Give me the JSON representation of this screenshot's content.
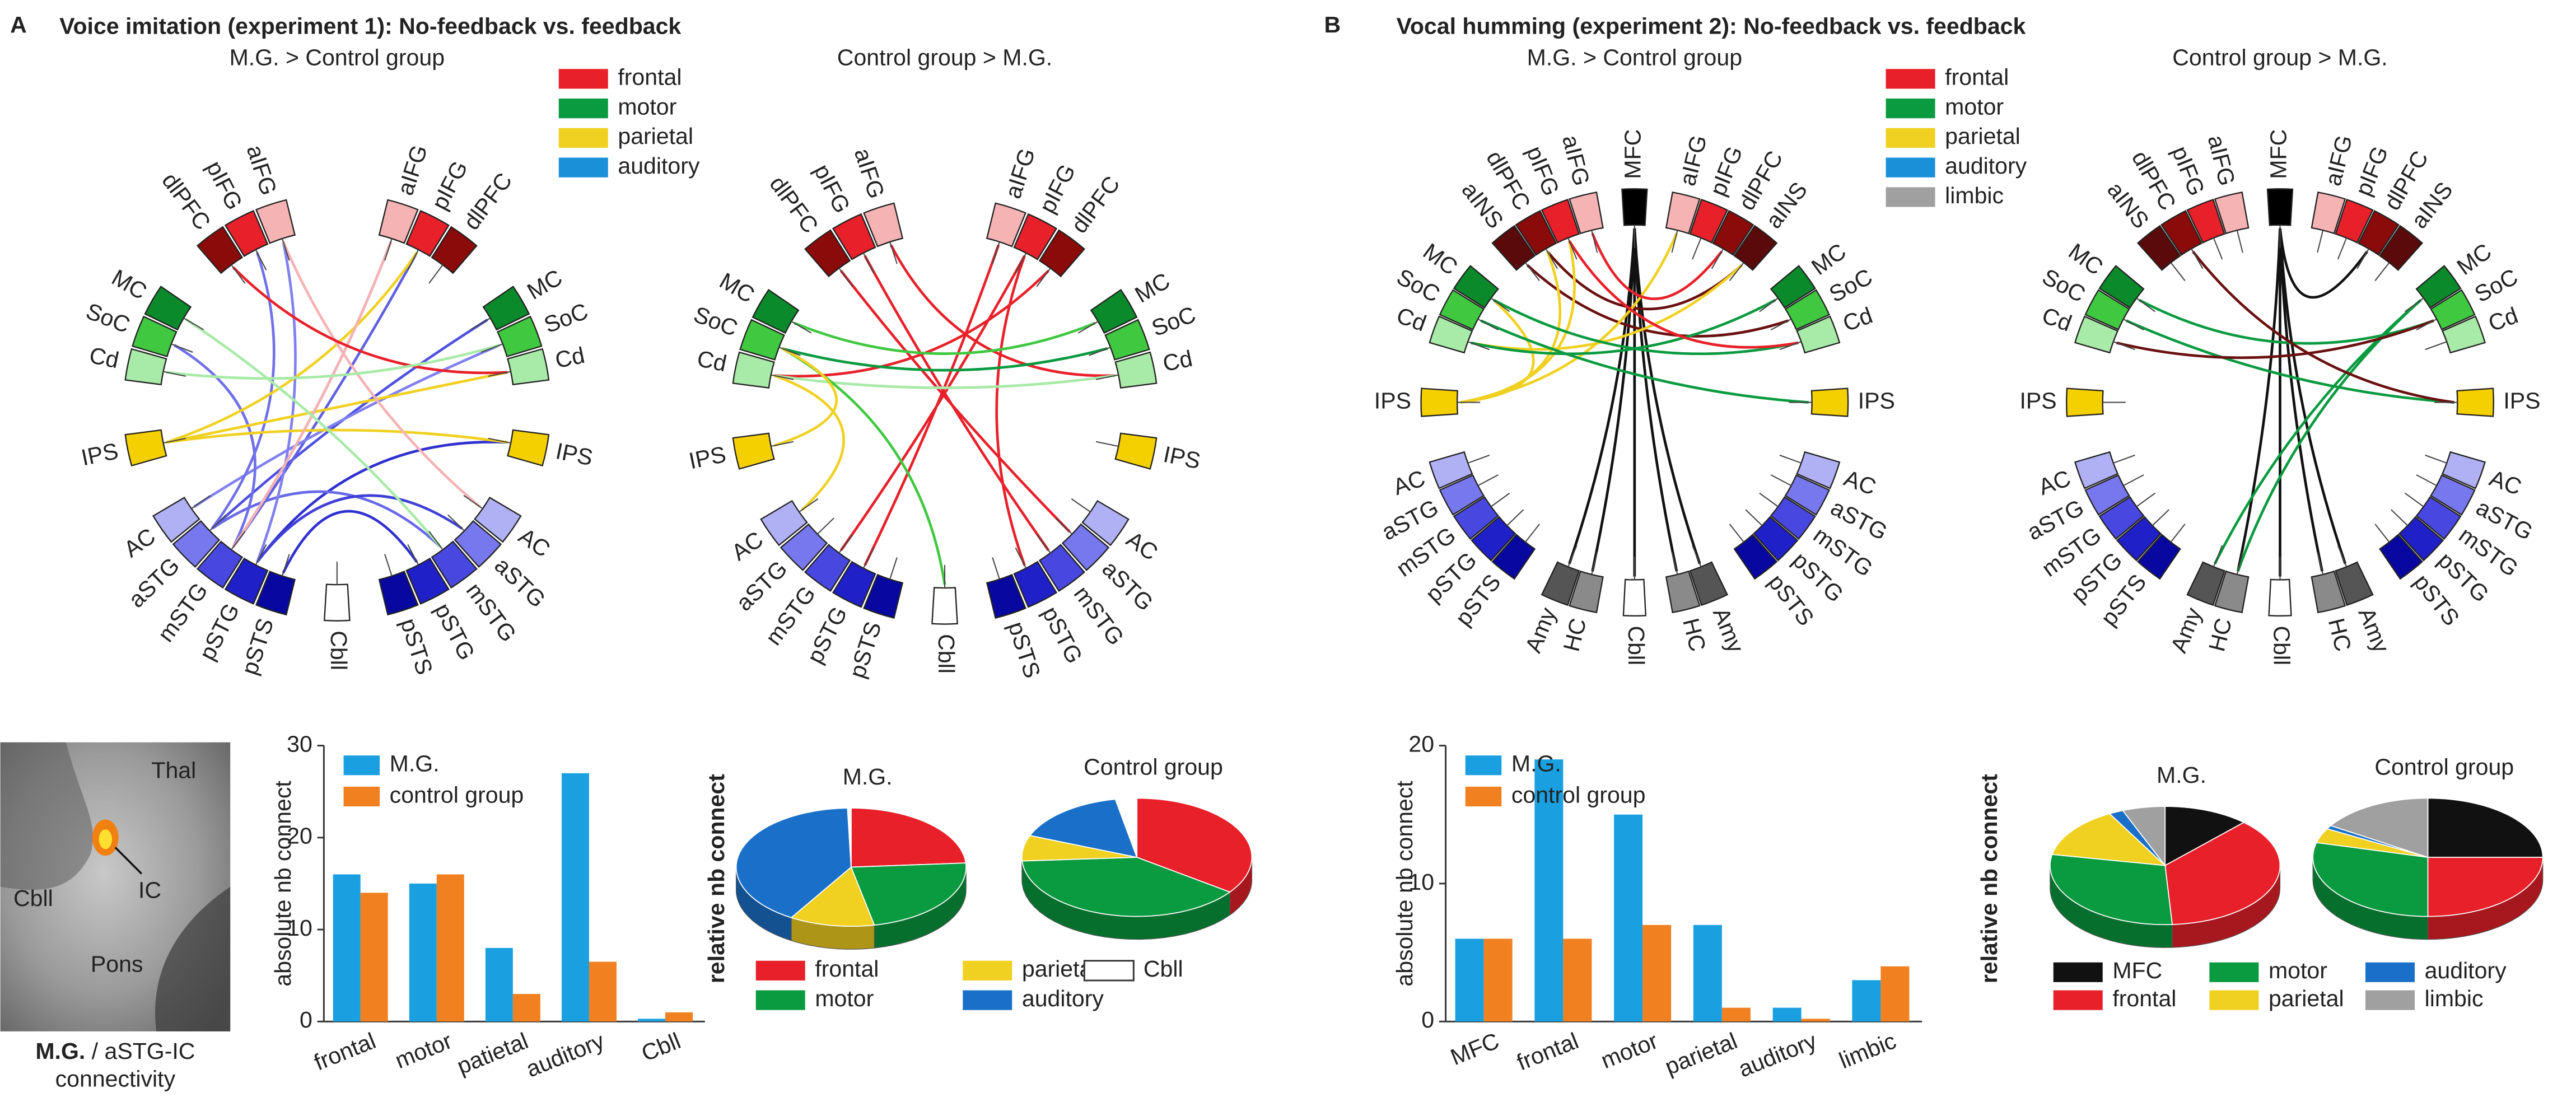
{
  "panel_a": {
    "letter": "A",
    "title": "Voice imitation (experiment 1):  No-feedback vs. feedback",
    "legend": [
      {
        "label": "frontal",
        "color": "#e8202a"
      },
      {
        "label": "motor",
        "color": "#0a9a40"
      },
      {
        "label": "parietal",
        "color": "#f0d020"
      },
      {
        "label": "auditory",
        "color": "#1a90d8"
      }
    ],
    "node_colors": [
      "#f5b3b3",
      "#e8202a",
      "#8b0a0a",
      "#0a8a2a",
      "#40c840",
      "#a8eaa8",
      "#f5d000",
      "#b0b0f5",
      "#7878ee",
      "#4848e0",
      "#2020c8",
      "#0808a0"
    ],
    "connectograms": [
      {
        "subtitle": "M.G. > Control group",
        "right_nodes": [
          "aIFG",
          "pIFG",
          "dlPFC",
          "MC",
          "SoC",
          "Cd",
          "IPS",
          "AC",
          "aSTG",
          "mSTG",
          "pSTG",
          "pSTS"
        ],
        "left_nodes": [
          "aIFG",
          "pIFG",
          "dlPFC",
          "MC",
          "SoC",
          "Cd",
          "IPS",
          "AC",
          "aSTG",
          "mSTG",
          "pSTG",
          "pSTS"
        ],
        "bottom_node": "Cbll"
      },
      {
        "subtitle": "Control group > M.G.",
        "right_nodes": [
          "aIFG",
          "pIFG",
          "dlPFC",
          "MC",
          "SoC",
          "Cd",
          "IPS",
          "AC",
          "aSTG",
          "mSTG",
          "pSTG",
          "pSTS"
        ],
        "left_nodes": [
          "aIFG",
          "pIFG",
          "dlPFC",
          "MC",
          "SoC",
          "Cd",
          "IPS",
          "AC",
          "aSTG",
          "mSTG",
          "pSTG",
          "pSTS"
        ],
        "bottom_node": "Cbll"
      }
    ],
    "brain_image": {
      "labels": [
        "Thal",
        "IC",
        "Cbll",
        "Pons"
      ],
      "caption_bold": "M.G.",
      "caption": " / aSTG-IC",
      "caption_line2": "connectivity"
    },
    "bar_chart": {
      "type": "bar",
      "ylabel": "absolute nb connect",
      "categories": [
        "frontal",
        "motor",
        "patietal",
        "auditory",
        "Cbll"
      ],
      "series": [
        {
          "name": "M.G.",
          "color": "#1aa0e0",
          "values": [
            16,
            15,
            8,
            27,
            0.3
          ]
        },
        {
          "name": "control group",
          "color": "#f08020",
          "values": [
            14,
            16,
            3,
            6.5,
            1
          ]
        }
      ],
      "ylim": [
        0,
        30
      ],
      "yticks": [
        0,
        10,
        20,
        30
      ]
    },
    "pie_chart": {
      "type": "pie",
      "ylabel": "relative nb connect",
      "categories": [
        "frontal",
        "motor",
        "parietal",
        "auditory",
        "Cbll"
      ],
      "colors": [
        "#e8202a",
        "#0a9a40",
        "#f0d020",
        "#1a70c8",
        "#ffffff"
      ],
      "series": [
        {
          "name": "M.G.",
          "values": [
            24,
            23,
            12,
            41,
            0.5
          ]
        },
        {
          "name": "Control group",
          "values": [
            35,
            39,
            7,
            16,
            3
          ]
        }
      ]
    }
  },
  "panel_b": {
    "letter": "B",
    "title": "Vocal humming (experiment 2):  No-feedback vs. feedback",
    "legend": [
      {
        "label": "frontal",
        "color": "#e8202a"
      },
      {
        "label": "motor",
        "color": "#0a9a40"
      },
      {
        "label": "parietal",
        "color": "#f0d020"
      },
      {
        "label": "auditory",
        "color": "#1a90d8"
      },
      {
        "label": "limbic",
        "color": "#a0a0a0"
      }
    ],
    "node_colors": [
      "#f5b3b3",
      "#e8202a",
      "#8b0a0a",
      "#5a0a0a",
      "#0a8a2a",
      "#40c840",
      "#a8eaa8",
      "#f5d000",
      "#b0b0f5",
      "#7878ee",
      "#4848e0",
      "#2020c8",
      "#0808a0",
      "#555555",
      "#8a8a8a"
    ],
    "connectograms": [
      {
        "subtitle": "M.G. > Control group",
        "top_node": "MFC",
        "right_nodes": [
          "aIFG",
          "pIFG",
          "dlPFC",
          "aINS",
          "MC",
          "SoC",
          "Cd",
          "IPS",
          "AC",
          "aSTG",
          "mSTG",
          "pSTG",
          "pSTS",
          "Amy",
          "HC"
        ],
        "left_nodes": [
          "aIFG",
          "pIFG",
          "dlPFC",
          "aINS",
          "MC",
          "SoC",
          "Cd",
          "IPS",
          "AC",
          "aSTG",
          "mSTG",
          "pSTG",
          "pSTS",
          "Amy",
          "HC"
        ],
        "bottom_node": "Cbll"
      },
      {
        "subtitle": "Control group > M.G.",
        "top_node": "MFC",
        "right_nodes": [
          "aIFG",
          "pIFG",
          "dlPFC",
          "aINS",
          "MC",
          "SoC",
          "Cd",
          "IPS",
          "AC",
          "aSTG",
          "mSTG",
          "pSTG",
          "pSTS",
          "Amy",
          "HC"
        ],
        "left_nodes": [
          "aIFG",
          "pIFG",
          "dlPFC",
          "aINS",
          "MC",
          "SoC",
          "Cd",
          "IPS",
          "AC",
          "aSTG",
          "mSTG",
          "pSTG",
          "pSTS",
          "Amy",
          "HC"
        ],
        "bottom_node": "Cbll"
      }
    ],
    "bar_chart": {
      "type": "bar",
      "ylabel": "absolute nb connect",
      "categories": [
        "MFC",
        "frontal",
        "motor",
        "parietal",
        "auditory",
        "limbic"
      ],
      "series": [
        {
          "name": "M.G.",
          "color": "#1aa0e0",
          "values": [
            6,
            19,
            15,
            7,
            1,
            3
          ]
        },
        {
          "name": "control group",
          "color": "#f08020",
          "values": [
            6,
            6,
            7,
            1,
            0.2,
            4
          ]
        }
      ],
      "ylim": [
        0,
        20
      ],
      "yticks": [
        0,
        10,
        20
      ]
    },
    "pie_chart": {
      "type": "pie",
      "ylabel": "relative nb connect",
      "categories": [
        "MFC",
        "frontal",
        "motor",
        "parietal",
        "auditory",
        "limbic"
      ],
      "colors": [
        "#111111",
        "#e8202a",
        "#0a9a40",
        "#f0d020",
        "#1a70c8",
        "#a0a0a0"
      ],
      "series": [
        {
          "name": "M.G.",
          "values": [
            12,
            37,
            29,
            14,
            2,
            6
          ]
        },
        {
          "name": "Control group",
          "values": [
            25,
            25,
            29,
            4,
            1,
            16
          ]
        }
      ]
    }
  }
}
